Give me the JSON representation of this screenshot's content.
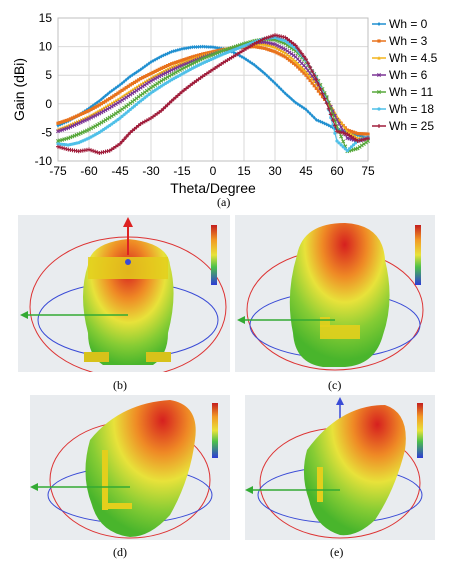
{
  "chart_data": {
    "type": "line",
    "xlabel": "Theta/Degree",
    "ylabel": "Gain (dBi)",
    "xlim": [
      -75,
      75
    ],
    "ylim": [
      -10,
      15
    ],
    "xticks": [
      -75,
      -60,
      -45,
      -30,
      -15,
      0,
      15,
      30,
      45,
      60,
      75
    ],
    "yticks": [
      -10,
      -5,
      0,
      5,
      10,
      15
    ],
    "grid": true,
    "legend_position": "right",
    "series": [
      {
        "name": "Wh = 0",
        "color": "#1f8fd0",
        "marker": "diamond",
        "x": [
          -75,
          -70,
          -65,
          -60,
          -55,
          -50,
          -45,
          -40,
          -35,
          -30,
          -25,
          -20,
          -15,
          -10,
          -5,
          0,
          5,
          10,
          15,
          20,
          25,
          30,
          35,
          40,
          45,
          50,
          55,
          60,
          65,
          70,
          75
        ],
        "y": [
          -3.8,
          -3.0,
          -2.0,
          -0.8,
          0.5,
          2.0,
          3.3,
          4.8,
          6.0,
          7.3,
          8.3,
          9.1,
          9.6,
          9.9,
          10.0,
          9.9,
          9.6,
          9.0,
          8.0,
          6.8,
          5.3,
          3.6,
          1.8,
          0.2,
          -1.0,
          -2.8,
          -3.6,
          -4.5,
          -5.0,
          -5.5,
          -6.0
        ]
      },
      {
        "name": "Wh = 3",
        "color": "#e8721c",
        "marker": "square",
        "x": [
          -75,
          -70,
          -65,
          -60,
          -55,
          -50,
          -45,
          -40,
          -35,
          -30,
          -25,
          -20,
          -15,
          -10,
          -5,
          0,
          5,
          10,
          15,
          20,
          25,
          30,
          35,
          40,
          45,
          50,
          55,
          60,
          65,
          70,
          75
        ],
        "y": [
          -3.4,
          -2.8,
          -2.0,
          -1.2,
          -0.2,
          0.9,
          2.1,
          3.3,
          4.4,
          5.3,
          6.2,
          7.0,
          7.6,
          8.2,
          8.7,
          9.1,
          9.5,
          9.7,
          9.9,
          10.0,
          9.7,
          9.1,
          8.2,
          6.8,
          5.0,
          2.7,
          0.3,
          -2.6,
          -4.6,
          -5.2,
          -5.3
        ]
      },
      {
        "name": "Wh = 4.5",
        "color": "#f2b41c",
        "marker": "triangle",
        "x": [
          -75,
          -70,
          -65,
          -60,
          -55,
          -50,
          -45,
          -40,
          -35,
          -30,
          -25,
          -20,
          -15,
          -10,
          -5,
          0,
          5,
          10,
          15,
          20,
          25,
          30,
          35,
          40,
          45,
          50,
          55,
          60,
          65,
          70,
          75
        ],
        "y": [
          -4.5,
          -3.8,
          -3.0,
          -2.2,
          -1.2,
          -0.1,
          1.0,
          2.2,
          3.4,
          4.5,
          5.5,
          6.4,
          7.1,
          7.8,
          8.4,
          8.9,
          9.4,
          9.8,
          10.2,
          10.5,
          10.4,
          9.9,
          8.9,
          7.4,
          5.6,
          3.5,
          1.0,
          -2.2,
          -4.9,
          -6.0,
          -6.0
        ]
      },
      {
        "name": "Wh = 6",
        "color": "#7b3494",
        "marker": "x",
        "x": [
          -75,
          -70,
          -65,
          -60,
          -55,
          -50,
          -45,
          -40,
          -35,
          -30,
          -25,
          -20,
          -15,
          -10,
          -5,
          0,
          5,
          10,
          15,
          20,
          25,
          30,
          35,
          40,
          45,
          50,
          55,
          60,
          65,
          70,
          75
        ],
        "y": [
          -4.8,
          -4.2,
          -3.4,
          -2.6,
          -1.7,
          -0.7,
          0.4,
          1.6,
          2.8,
          4.0,
          5.0,
          5.9,
          6.7,
          7.4,
          8.1,
          8.7,
          9.3,
          9.8,
          10.3,
          10.7,
          10.8,
          10.4,
          9.5,
          8.2,
          6.3,
          3.9,
          1.0,
          -2.8,
          -6.0,
          -6.5,
          -6.0
        ]
      },
      {
        "name": "Wh = 11",
        "color": "#57a83a",
        "marker": "x",
        "x": [
          -75,
          -70,
          -65,
          -60,
          -55,
          -50,
          -45,
          -40,
          -35,
          -30,
          -25,
          -20,
          -15,
          -10,
          -5,
          0,
          5,
          10,
          15,
          20,
          25,
          30,
          35,
          40,
          45,
          50,
          55,
          60,
          65,
          70,
          75
        ],
        "y": [
          -6.5,
          -6.0,
          -5.3,
          -4.5,
          -3.5,
          -2.4,
          -1.2,
          0.1,
          1.5,
          2.8,
          4.0,
          5.1,
          6.1,
          7.0,
          7.9,
          8.6,
          9.3,
          9.9,
          10.5,
          11.0,
          11.3,
          11.2,
          10.5,
          9.2,
          7.3,
          4.7,
          1.2,
          -4.0,
          -8.3,
          -7.8,
          -6.5
        ]
      },
      {
        "name": "Wh = 18",
        "color": "#4fc0e8",
        "marker": "circle",
        "x": [
          -75,
          -70,
          -65,
          -60,
          -55,
          -50,
          -45,
          -40,
          -35,
          -30,
          -25,
          -20,
          -15,
          -10,
          -5,
          0,
          5,
          10,
          15,
          20,
          25,
          30,
          35,
          40,
          45,
          50,
          55,
          60,
          65,
          70,
          75
        ],
        "y": [
          -7.0,
          -7.2,
          -6.8,
          -6.0,
          -5.0,
          -3.8,
          -2.5,
          -1.0,
          0.5,
          1.9,
          3.1,
          4.2,
          5.2,
          6.2,
          7.1,
          7.9,
          8.7,
          9.4,
          10.1,
          10.8,
          11.4,
          11.6,
          11.0,
          9.7,
          7.6,
          4.5,
          0.3,
          -6.5,
          -8.2,
          -6.5,
          -5.8
        ]
      },
      {
        "name": "Wh = 25",
        "color": "#a01c3a",
        "marker": "plus",
        "x": [
          -75,
          -70,
          -65,
          -60,
          -55,
          -50,
          -45,
          -40,
          -35,
          -30,
          -25,
          -20,
          -15,
          -10,
          -5,
          0,
          5,
          10,
          15,
          20,
          25,
          30,
          35,
          40,
          45,
          50,
          55,
          60,
          65,
          70,
          75
        ],
        "y": [
          -7.5,
          -8.0,
          -8.3,
          -8.0,
          -8.6,
          -8.2,
          -7.0,
          -5.0,
          -3.5,
          -2.5,
          -1.2,
          0.5,
          2.1,
          3.5,
          4.8,
          6.0,
          7.2,
          8.3,
          9.4,
          10.5,
          11.4,
          12.0,
          11.6,
          10.2,
          7.8,
          4.3,
          0.1,
          -4.8,
          -5.3,
          -6.5,
          -6.0
        ]
      }
    ]
  },
  "captions": {
    "a": "(a)",
    "b": "(b)",
    "c": "(c)",
    "d": "(d)",
    "e": "(e)"
  }
}
